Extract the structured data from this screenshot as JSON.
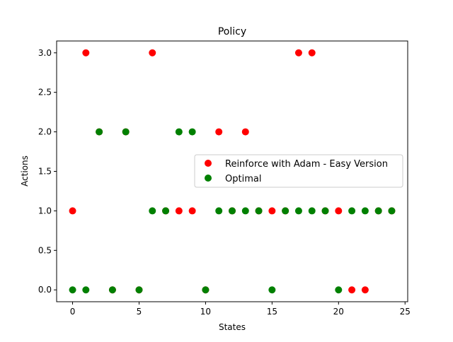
{
  "chart_data": {
    "type": "scatter",
    "title": "Policy",
    "xlabel": "States",
    "ylabel": "Actions",
    "xlim": [
      -1.2,
      25.2
    ],
    "ylim": [
      -0.15,
      3.15
    ],
    "xticks": [
      0,
      5,
      10,
      15,
      20,
      25
    ],
    "xtick_labels": [
      "0",
      "5",
      "10",
      "15",
      "20",
      "25"
    ],
    "yticks": [
      0,
      0.5,
      1,
      1.5,
      2,
      2.5,
      3
    ],
    "ytick_labels": [
      "0.0",
      "0.5",
      "1.0",
      "1.5",
      "2.0",
      "2.5",
      "3.0"
    ],
    "grid": false,
    "legend_position": "center-right",
    "series": [
      {
        "name": "Reinforce with Adam - Easy Version",
        "color": "#ff0000",
        "x": [
          0,
          1,
          2,
          3,
          4,
          5,
          6,
          7,
          8,
          9,
          10,
          11,
          12,
          13,
          14,
          15,
          16,
          17,
          18,
          19,
          20,
          21,
          22,
          23,
          24
        ],
        "y": [
          1,
          3,
          2,
          0,
          2,
          0,
          3,
          1,
          1,
          1,
          0,
          2,
          1,
          2,
          1,
          1,
          1,
          3,
          3,
          1,
          1,
          0,
          0,
          1,
          1
        ]
      },
      {
        "name": "Optimal",
        "color": "#008000",
        "x": [
          0,
          1,
          2,
          3,
          4,
          5,
          6,
          7,
          8,
          9,
          10,
          11,
          12,
          13,
          14,
          15,
          16,
          17,
          18,
          19,
          20,
          21,
          22,
          23,
          24
        ],
        "y": [
          0,
          0,
          2,
          0,
          2,
          0,
          1,
          1,
          2,
          2,
          0,
          1,
          1,
          1,
          1,
          0,
          1,
          1,
          1,
          1,
          0,
          1,
          1,
          1,
          1
        ]
      }
    ]
  }
}
